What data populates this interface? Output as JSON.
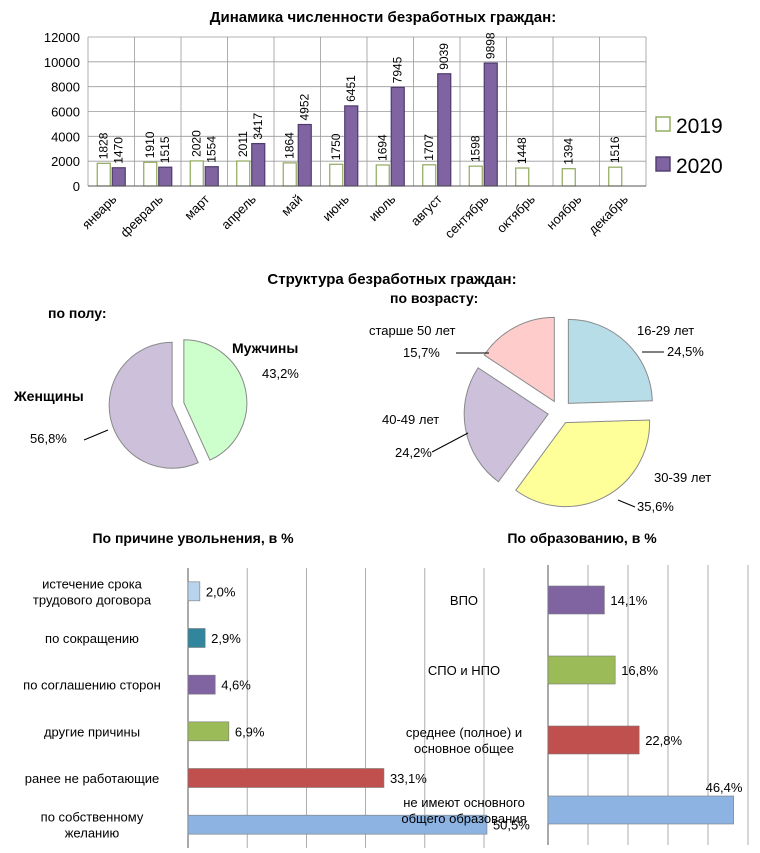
{
  "chart_data": [
    {
      "type": "bar",
      "title": "Динамика численности безработных граждан:",
      "categories": [
        "январь",
        "февраль",
        "март",
        "апрель",
        "май",
        "июнь",
        "июль",
        "август",
        "сентябрь",
        "октябрь",
        "ноябрь",
        "декабрь"
      ],
      "series": [
        {
          "name": "2019",
          "values": [
            1828,
            1910,
            2020,
            2011,
            1864,
            1750,
            1694,
            1707,
            1598,
            1448,
            1394,
            1516
          ],
          "color": "#ffffff",
          "stroke": "#8fa85a"
        },
        {
          "name": "2020",
          "values": [
            1470,
            1515,
            1554,
            3417,
            4952,
            6451,
            7945,
            9039,
            9898,
            null,
            null,
            null
          ],
          "color": "#8064a2",
          "stroke": "#4e3b6b"
        }
      ],
      "ylim": [
        0,
        12000
      ],
      "yticks": [
        "0",
        "2000",
        "4000",
        "6000",
        "8000",
        "10000",
        "12000"
      ],
      "grid": true,
      "legend": "right"
    },
    {
      "type": "pie",
      "heading": "Структура безработных граждан:",
      "subtitle": "по полу:",
      "slices": [
        {
          "label": "Мужчины",
          "value": 43.2,
          "text": "43,2%",
          "color": "#ccffcc"
        },
        {
          "label": "Женщины",
          "value": 56.8,
          "text": "56,8%",
          "color": "#ccc0da"
        }
      ]
    },
    {
      "type": "pie",
      "subtitle": "по возрасту:",
      "slices": [
        {
          "label": "16-29 лет",
          "value": 24.5,
          "text": "24,5%",
          "color": "#b7dde8"
        },
        {
          "label": "30-39 лет",
          "value": 35.6,
          "text": "35,6%",
          "color": "#ffff99"
        },
        {
          "label": "40-49 лет",
          "value": 24.2,
          "text": "24,2%",
          "color": "#ccc0da"
        },
        {
          "label": "старше 50 лет",
          "value": 15.7,
          "text": "15,7%",
          "color": "#ffcccc"
        }
      ]
    },
    {
      "type": "bar",
      "orientation": "horizontal",
      "title": "По причине увольнения, в %",
      "categories": [
        [
          "истечение срока",
          "трудового договора"
        ],
        [
          "по сокращению"
        ],
        [
          "по соглашению сторон"
        ],
        [
          "другие причины"
        ],
        [
          "ранее не работающие"
        ],
        [
          "по собственному",
          "желанию"
        ]
      ],
      "values": [
        2.0,
        2.9,
        4.6,
        6.9,
        33.1,
        50.5
      ],
      "value_labels": [
        "2,0%",
        "2,9%",
        "4,6%",
        "6,9%",
        "33,1%",
        "50,5%"
      ],
      "colors": [
        "#b9d3ee",
        "#31859c",
        "#8064a2",
        "#9bbb59",
        "#c0504d",
        "#8db3e2"
      ],
      "xlim": [
        0,
        50
      ],
      "grid": true
    },
    {
      "type": "bar",
      "orientation": "horizontal",
      "title": "По образованию, в %",
      "categories": [
        [
          "ВПО"
        ],
        [
          "СПО и НПО"
        ],
        [
          "среднее (полное) и",
          "основное общее"
        ],
        [
          "не имеют основного",
          "общего образования"
        ]
      ],
      "values": [
        14.1,
        16.8,
        22.8,
        46.4
      ],
      "value_labels": [
        "14,1%",
        "16,8%",
        "22,8%",
        "46,4%"
      ],
      "colors": [
        "#8064a2",
        "#9bbb59",
        "#c0504d",
        "#8db3e2"
      ],
      "xlim": [
        0,
        50
      ],
      "grid": true
    }
  ]
}
